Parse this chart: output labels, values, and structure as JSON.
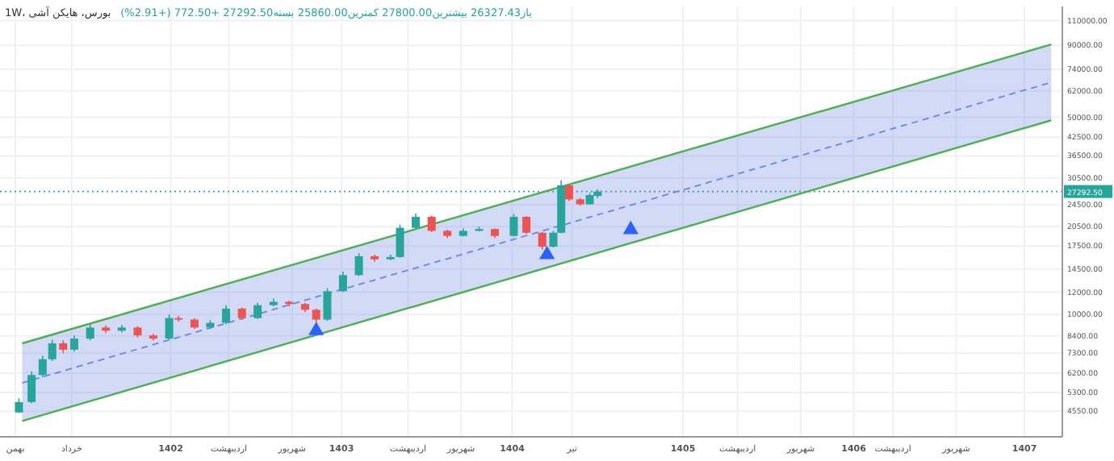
{
  "chart_data": {
    "type": "candlestick",
    "title": "1W، بورس، هایکن آشی",
    "subtitle": "باز26327.43 بیشترین27800.00 کمترین25860.00 بسته27292.50 +772.50 (+2.91%)",
    "xlim": [
      1401.0,
      1407.222
    ],
    "xticks": [
      {
        "value": 1401.09,
        "label": "بهمن"
      },
      {
        "value": 1401.42,
        "label": "خرداد"
      },
      1402,
      {
        "value": 1402.34,
        "label": "اردیبهشت"
      },
      {
        "value": 1402.71,
        "label": "شهریور"
      },
      1403,
      {
        "value": 1403.39,
        "label": "اردیبهشت"
      },
      {
        "value": 1403.7,
        "label": "شهریور"
      },
      1404,
      {
        "value": 1404.35,
        "label": "تیر"
      },
      1405,
      {
        "value": 1405.32,
        "label": "اردیبهشت"
      },
      {
        "value": 1405.69,
        "label": "شهریور"
      },
      1406,
      {
        "value": 1406.23,
        "label": "اردیبهشت"
      },
      {
        "value": 1406.6,
        "label": "شهریور"
      },
      1407
    ],
    "ylim": [
      3690,
      123500
    ],
    "log": "y",
    "yticks": [
      {
        "value": 4550,
        "label": "4550.00"
      },
      {
        "value": 5300,
        "label": "5300.00"
      },
      {
        "value": 6200,
        "label": "6200.00"
      },
      {
        "value": 7300,
        "label": "7300.00"
      },
      {
        "value": 8400,
        "label": "8400.00"
      },
      {
        "value": 10000,
        "label": "10000.00"
      },
      {
        "value": 12000,
        "label": "12000.00"
      },
      {
        "value": 14500,
        "label": "14500.00"
      },
      {
        "value": 17500,
        "label": "17500.00"
      },
      {
        "value": 20500,
        "label": "20500.00"
      },
      {
        "value": 24500,
        "label": "24500.00"
      },
      {
        "value": 30500,
        "label": "30500.00"
      },
      {
        "value": 36500,
        "label": "36500.00"
      },
      {
        "value": 42500,
        "label": "42500.00"
      },
      {
        "value": 50000,
        "label": "50000.00"
      },
      {
        "value": 62000,
        "label": "62000.00"
      },
      {
        "value": 74000,
        "label": "74000.00"
      },
      {
        "value": 90000,
        "label": "90000.00"
      },
      {
        "value": 110000,
        "label": "110000.00"
      }
    ],
    "grid": true,
    "ref_lines": [
      {
        "axis": "y",
        "value": 27292.5,
        "label": "27292.50",
        "color": "#26a69a",
        "line_style": "dotted"
      }
    ],
    "series": [
      {
        "type": "line",
        "color": "#6b86e0",
        "line_style": "dashed",
        "x": [
          1401.13,
          1407.157
        ],
        "values": [
          5730,
          66500
        ],
        "lower": [
          4200,
          48800
        ],
        "upper": [
          7910,
          90600
        ]
      },
      {
        "type": "line",
        "color": "#4caf50",
        "line_style": "solid",
        "x": [
          1401.13,
          1407.157
        ],
        "values": [
          7910,
          90600
        ]
      },
      {
        "type": "line",
        "color": "#4caf50",
        "line_style": "solid",
        "x": [
          1401.13,
          1407.157
        ],
        "values": [
          4200,
          48800
        ]
      },
      {
        "x": [
          1401.111,
          1401.185,
          1401.25,
          1401.306,
          1401.37,
          1401.435,
          1401.528,
          1401.62,
          1401.713,
          1401.806,
          1401.898,
          1401.991,
          1402.046,
          1402.139,
          1402.231,
          1402.324,
          1402.417,
          1402.509,
          1402.602,
          1402.694,
          1402.787,
          1402.852,
          1402.917,
          1403.009,
          1403.102,
          1403.194,
          1403.287,
          1403.343,
          1403.435,
          1403.528,
          1403.62,
          1403.713,
          1403.806,
          1403.898,
          1404.009,
          1404.083,
          1404.176,
          1404.241,
          1404.287,
          1404.333,
          1404.398,
          1404.454,
          1404.5
        ],
        "ohlc": [
          [
            4500,
            5050,
            4480,
            4900
          ],
          [
            4900,
            6300,
            4850,
            6110
          ],
          [
            6110,
            7150,
            6000,
            6950
          ],
          [
            6950,
            8150,
            6850,
            7910
          ],
          [
            7910,
            8100,
            7300,
            7510
          ],
          [
            7510,
            8450,
            7400,
            8220
          ],
          [
            8220,
            9250,
            8100,
            9000
          ],
          [
            9000,
            9150,
            8600,
            8770
          ],
          [
            8770,
            9200,
            8650,
            9000
          ],
          [
            9000,
            9100,
            8300,
            8440
          ],
          [
            8440,
            8550,
            8100,
            8220
          ],
          [
            8220,
            10000,
            8150,
            9720
          ],
          [
            9720,
            9900,
            9450,
            9600
          ],
          [
            9600,
            9700,
            8900,
            9000
          ],
          [
            9000,
            9550,
            8900,
            9350
          ],
          [
            9350,
            10800,
            9250,
            10500
          ],
          [
            10500,
            10600,
            9600,
            9720
          ],
          [
            9720,
            11000,
            9650,
            10800
          ],
          [
            10800,
            11400,
            10700,
            11100
          ],
          [
            11100,
            11200,
            10700,
            10900
          ],
          [
            10900,
            11000,
            10200,
            10400
          ],
          [
            10400,
            10500,
            9350,
            9600
          ],
          [
            9600,
            12400,
            9500,
            12100
          ],
          [
            12100,
            14200,
            12000,
            13800
          ],
          [
            13800,
            16500,
            13700,
            16100
          ],
          [
            16100,
            16300,
            15400,
            15700
          ],
          [
            15700,
            16300,
            15600,
            16000
          ],
          [
            16000,
            20800,
            15900,
            20300
          ],
          [
            20300,
            22800,
            20100,
            22200
          ],
          [
            22200,
            22400,
            19600,
            19800
          ],
          [
            19800,
            20000,
            18700,
            19000
          ],
          [
            19000,
            20200,
            18900,
            19800
          ],
          [
            19800,
            20500,
            19700,
            20100
          ],
          [
            20100,
            20200,
            18700,
            19000
          ],
          [
            19000,
            22700,
            18900,
            22200
          ],
          [
            22200,
            22300,
            19300,
            19500
          ],
          [
            19500,
            19600,
            17000,
            17400
          ],
          [
            17400,
            19800,
            17300,
            19500
          ],
          [
            19500,
            29900,
            19400,
            28700
          ],
          [
            28700,
            28800,
            25300,
            25600
          ],
          [
            25600,
            25900,
            24300,
            24600
          ],
          [
            24600,
            27000,
            24500,
            26520
          ],
          [
            26327.43,
            27800,
            25860,
            27292.5
          ]
        ],
        "colors": [
          "#26a69a",
          "#26a69a",
          "#26a69a",
          "#26a69a",
          "#ef5350",
          "#26a69a",
          "#26a69a",
          "#ef5350",
          "#26a69a",
          "#ef5350",
          "#ef5350",
          "#26a69a",
          "#ef5350",
          "#ef5350",
          "#26a69a",
          "#26a69a",
          "#ef5350",
          "#26a69a",
          "#26a69a",
          "#ef5350",
          "#ef5350",
          "#ef5350",
          "#26a69a",
          "#26a69a",
          "#26a69a",
          "#ef5350",
          "#26a69a",
          "#26a69a",
          "#26a69a",
          "#ef5350",
          "#ef5350",
          "#26a69a",
          "#26a69a",
          "#ef5350",
          "#26a69a",
          "#ef5350",
          "#ef5350",
          "#26a69a",
          "#26a69a",
          "#ef5350",
          "#ef5350",
          "#26a69a",
          "#26a69a"
        ]
      },
      {
        "type": "scatter",
        "marker": "triangle",
        "color": "#2962ff",
        "x": [
          1402.852,
          1404.204,
          1404.694
        ],
        "values": [
          8770,
          16300,
          20000
        ]
      }
    ]
  }
}
